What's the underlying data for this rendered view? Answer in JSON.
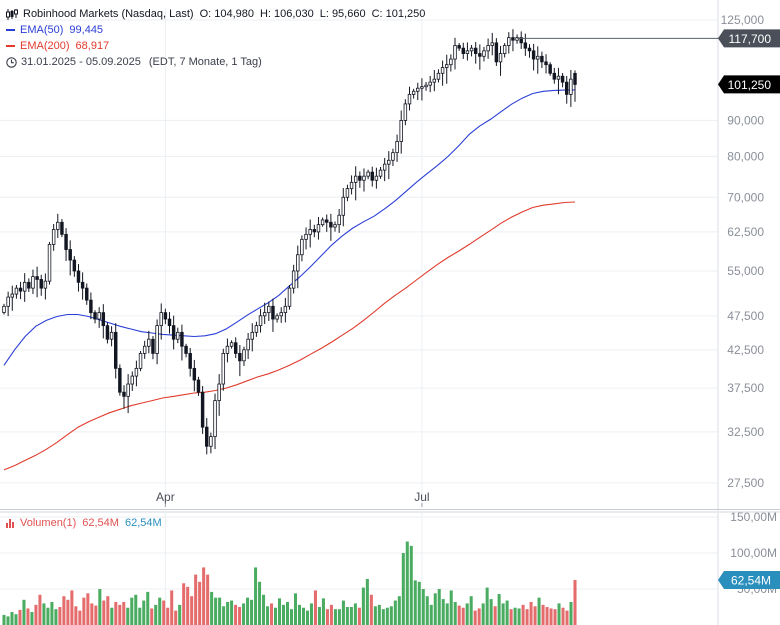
{
  "header": {
    "title": "Robinhood Markets (Nasdaq, Last)",
    "ohlc": {
      "o_label": "O:",
      "o": "104,980",
      "h_label": "H:",
      "h": "106,030",
      "l_label": "L:",
      "l": "95,660",
      "c_label": "C:",
      "c": "101,250"
    },
    "ema50": {
      "label": "EMA(50)",
      "value": "99,445",
      "color": "#2b3fd6"
    },
    "ema200": {
      "label": "EMA(200)",
      "value": "68,917",
      "color": "#e03b2c"
    },
    "range": "31.01.2025 - 05.09.2025",
    "range_info": "(EDT, 7 Monate, 1 Tag)",
    "icons": [
      "candlestick-icon",
      "clock-icon"
    ]
  },
  "volume_header": {
    "label": "Volumen(1)",
    "value_red": "62,54M",
    "value_blue": "62,54M"
  },
  "colors": {
    "up": "#2a9d45",
    "down": "#e05252",
    "candle": "#131722",
    "price_badge": "#000000",
    "volume_badge": "#2a8fbd",
    "grid": "#eceff3"
  },
  "chart_data": [
    {
      "type": "candlestick",
      "title": "Robinhood Markets (Nasdaq, Last)",
      "x_range": [
        "2025-01-31",
        "2025-09-05"
      ],
      "x_ticks": [
        {
          "label": "Apr",
          "index": 39
        },
        {
          "label": "Jul",
          "index": 101
        }
      ],
      "y_scale": "log",
      "y_ticks": [
        "27,500",
        "32,500",
        "37,500",
        "42,500",
        "47,500",
        "55,000",
        "62,500",
        "70,000",
        "80,000",
        "90,000",
        "125,000"
      ],
      "y_tick_values": [
        27.5,
        32.5,
        37.5,
        42.5,
        47.5,
        55,
        62.5,
        70,
        80,
        90,
        125
      ],
      "ylim": [
        25.5,
        130
      ],
      "grid": true,
      "reference_line": {
        "label": "117,700",
        "value": 117.7
      },
      "last_price": {
        "label": "101,250",
        "value": 101.25
      },
      "last_ohlc": {
        "open": 104.98,
        "high": 106.03,
        "low": 95.66,
        "close": 101.25
      },
      "close": [
        49,
        50.5,
        51,
        52,
        51.5,
        53,
        52,
        54,
        53.5,
        52,
        53.2,
        60,
        63,
        64.5,
        62,
        59,
        57,
        55,
        53,
        52,
        50,
        48,
        47,
        48,
        46,
        44,
        45,
        40,
        37,
        36.5,
        38,
        39,
        40,
        42,
        43,
        44,
        42,
        46,
        48,
        47,
        46,
        44,
        45,
        43,
        42,
        40,
        38.5,
        37,
        33,
        31,
        32,
        36,
        38,
        42,
        43,
        43.5,
        42,
        41,
        42.5,
        44,
        45,
        46,
        47.5,
        48,
        49,
        47,
        47.5,
        48,
        49,
        52,
        55,
        58,
        61,
        62,
        63,
        62.5,
        64,
        65,
        64.5,
        63.5,
        64,
        66,
        70,
        72,
        73.5,
        75,
        74,
        75,
        76,
        74,
        75,
        76.5,
        78,
        79,
        81,
        84,
        90,
        95,
        98,
        99,
        100,
        100.5,
        101,
        102,
        103,
        105,
        107,
        108,
        110,
        115,
        114,
        112,
        113,
        114,
        112,
        111,
        113,
        115,
        116,
        109,
        112,
        115,
        118,
        117,
        118,
        116,
        114,
        113,
        110,
        111,
        109,
        108,
        105,
        103,
        104,
        102,
        98,
        103,
        101.25
      ],
      "ema50": [
        40.4,
        42.5,
        44.4,
        45.9,
        46.8,
        47.4,
        47.7,
        47.7,
        47.4,
        46.9,
        46.4,
        45.9,
        45.5,
        45.1,
        44.9,
        44.7,
        44.6,
        44.5,
        44.4,
        44.5,
        44.8,
        45.5,
        46.5,
        47.6,
        48.6,
        49.6,
        50.8,
        52.4,
        54.0,
        55.8,
        57.8,
        59.9,
        61.7,
        63.3,
        64.6,
        65.8,
        67.4,
        69.2,
        71.3,
        73.5,
        75.6,
        77.7,
        80.0,
        82.8,
        86.0,
        88.4,
        90.3,
        92.6,
        94.9,
        96.8,
        98.3,
        99.0,
        99.3,
        99.4,
        99.445
      ],
      "ema200": [
        28.7,
        29.1,
        29.6,
        30.1,
        30.7,
        31.4,
        32.2,
        33.0,
        33.6,
        34.1,
        34.6,
        35.0,
        35.4,
        35.7,
        36.0,
        36.3,
        36.5,
        36.7,
        36.9,
        37.0,
        37.2,
        37.5,
        37.9,
        38.4,
        38.9,
        39.3,
        39.8,
        40.4,
        41.1,
        41.9,
        42.7,
        43.6,
        44.6,
        45.6,
        46.8,
        48.1,
        49.5,
        50.8,
        52.0,
        53.4,
        54.8,
        56.2,
        57.5,
        58.7,
        60.0,
        61.4,
        62.8,
        64.3,
        65.6,
        66.7,
        67.7,
        68.2,
        68.5,
        68.8,
        68.917
      ]
    },
    {
      "type": "bar",
      "title": "Volumen(1)",
      "y_ticks": [
        "150,00M",
        "100,00M",
        "50,00M"
      ],
      "y_tick_values": [
        150,
        100,
        50
      ],
      "ylim": [
        0,
        157
      ],
      "last": {
        "label": "62,54M",
        "value": 62.54
      },
      "values": [
        14,
        12,
        18,
        15,
        21,
        35,
        23,
        18,
        28,
        42,
        30,
        24,
        32,
        22,
        25,
        40,
        35,
        48,
        26,
        20,
        38,
        44,
        30,
        27,
        50,
        34,
        40,
        24,
        32,
        28,
        32,
        24,
        38,
        42,
        24,
        34,
        46,
        23,
        28,
        38,
        34,
        24,
        48,
        20,
        28,
        58,
        53,
        40,
        70,
        60,
        80,
        70,
        46,
        38,
        38,
        26,
        32,
        34,
        28,
        25,
        30,
        38,
        35,
        80,
        60,
        42,
        26,
        30,
        24,
        37,
        28,
        32,
        22,
        44,
        28,
        24,
        20,
        30,
        48,
        25,
        37,
        22,
        28,
        22,
        22,
        34,
        25,
        25,
        30,
        24,
        52,
        64,
        42,
        26,
        28,
        22,
        24,
        26,
        34,
        40,
        100,
        116,
        110,
        62,
        60,
        50,
        40,
        28,
        44,
        50,
        36,
        30,
        48,
        32,
        27,
        24,
        30,
        40,
        20,
        23,
        30,
        52,
        36,
        26,
        43,
        30,
        34,
        22,
        24,
        23,
        28,
        22,
        32,
        26,
        38,
        28,
        25,
        23,
        22,
        30,
        24,
        20,
        32,
        62.54
      ]
    }
  ]
}
